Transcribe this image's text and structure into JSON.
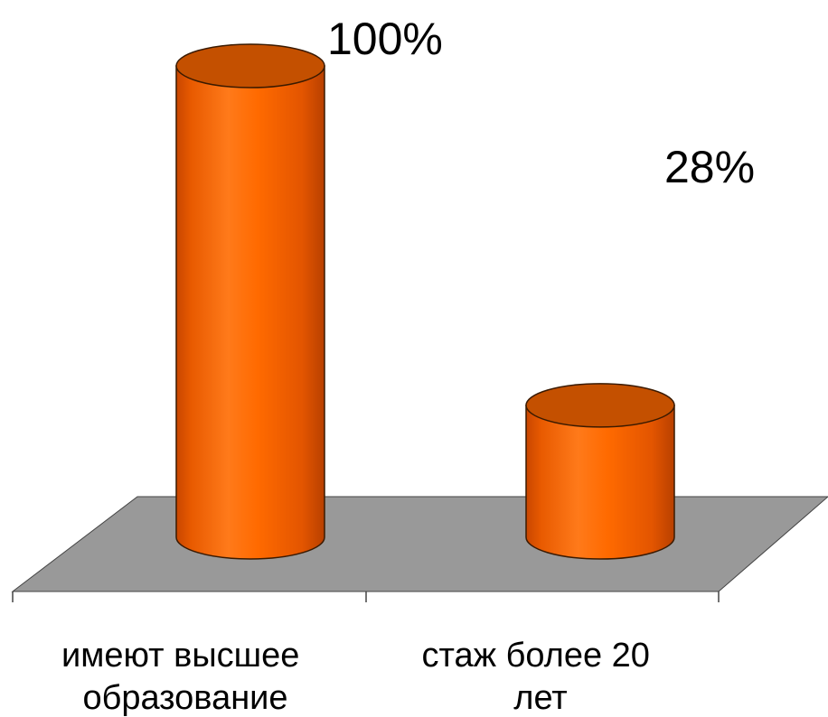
{
  "chart_data": {
    "type": "bar",
    "style": "3d-cylinder",
    "categories": [
      [
        "имеют высшее",
        "образование"
      ],
      [
        "стаж более  20",
        "лет"
      ]
    ],
    "values": [
      100,
      28
    ],
    "data_labels": [
      "100%",
      "28%"
    ],
    "title": "",
    "xlabel": "",
    "ylabel": "",
    "legend": "none",
    "grid": false,
    "colors": {
      "bar": "#FF6A00",
      "floor": "#999999",
      "background": "#FFFFFF",
      "text": "#000000"
    }
  }
}
